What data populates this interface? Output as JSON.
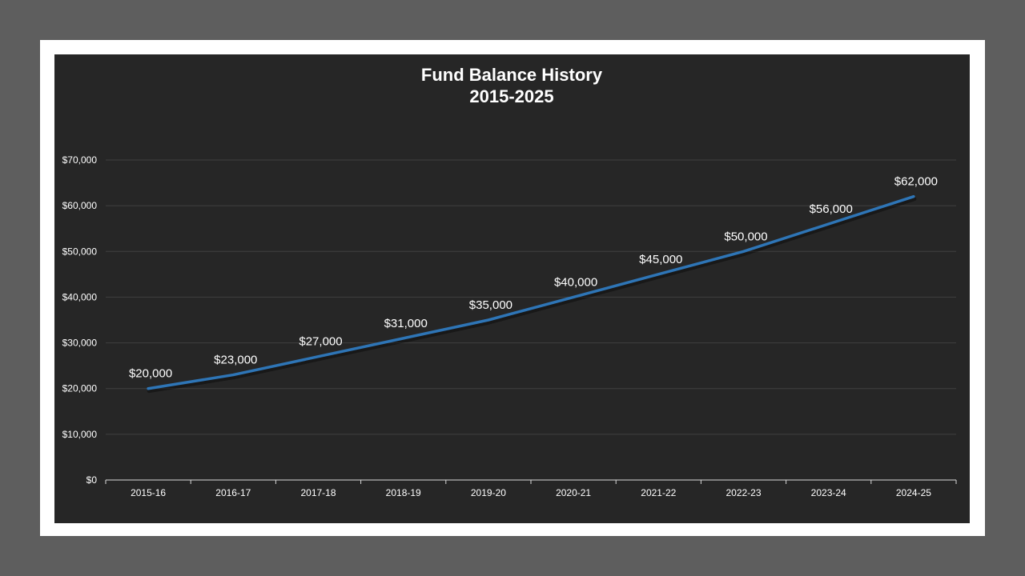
{
  "chart_data": {
    "type": "line",
    "title": "Fund Balance History",
    "subtitle": "2015-2025",
    "categories": [
      "2015-16",
      "2016-17",
      "2017-18",
      "2018-19",
      "2019-20",
      "2020-21",
      "2021-22",
      "2022-23",
      "2023-24",
      "2024-25"
    ],
    "series": [
      {
        "values": [
          20000,
          23000,
          27000,
          31000,
          35000,
          40000,
          45000,
          50000,
          56000,
          62000
        ],
        "color": "#2e75b6"
      }
    ],
    "data_labels": [
      "$20,000",
      "$23,000",
      "$27,000",
      "$31,000",
      "$35,000",
      "$40,000",
      "$45,000",
      "$50,000",
      "$56,000",
      "$62,000"
    ],
    "y_ticks": [
      0,
      10000,
      20000,
      30000,
      40000,
      50000,
      60000,
      70000
    ],
    "y_tick_labels": [
      "$0",
      "$10,000",
      "$20,000",
      "$30,000",
      "$40,000",
      "$50,000",
      "$60,000",
      "$70,000"
    ],
    "ylim": [
      0,
      70000
    ],
    "grid": true,
    "legend": "none",
    "colors": {
      "plot_background": "#262626",
      "frame": "#ffffff",
      "page_background": "#5e5e5e",
      "gridline": "#404040",
      "text": "#ffffff"
    }
  }
}
